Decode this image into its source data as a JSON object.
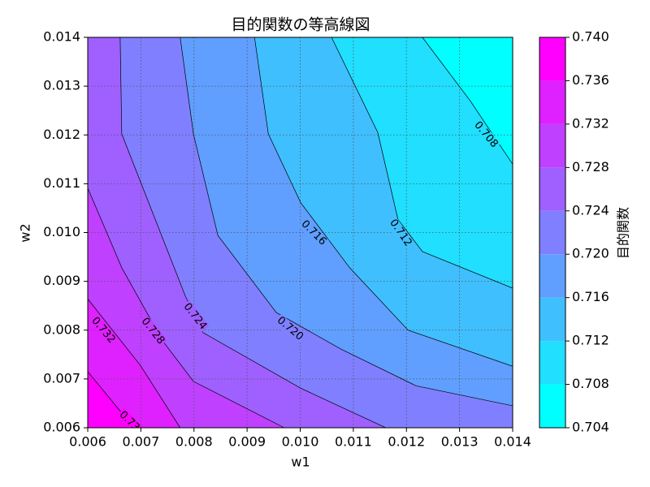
{
  "chart_data": {
    "type": "contour",
    "title": "目的関数の等高線図",
    "x_label": "w1",
    "y_label": "w2",
    "xlim": [
      0.006,
      0.014
    ],
    "ylim": [
      0.006,
      0.014
    ],
    "xticks": [
      0.006,
      0.007,
      0.008,
      0.009,
      {
        "value": 0.01,
        "label": "0.010"
      },
      0.011,
      0.012,
      0.013,
      0.014
    ],
    "yticks": [
      0.006,
      0.007,
      0.008,
      0.009,
      {
        "value": 0.01,
        "label": "0.010"
      },
      0.011,
      0.012,
      0.013,
      0.014
    ],
    "grid": true,
    "colorbar_label": "目的関数",
    "levels": [
      0.704,
      0.708,
      0.712,
      0.716,
      {
        "value": 0.72,
        "label": "0.720"
      },
      0.724,
      0.728,
      0.732,
      0.736,
      {
        "value": 0.74,
        "label": "0.740"
      }
    ],
    "band_colors": [
      "#00ffff",
      "#20dfff",
      "#40bfff",
      "#609fff",
      "#807fff",
      "#9f60ff",
      "#bf40ff",
      "#df20ff",
      "#ff00ff"
    ],
    "line_color": "#000000",
    "contours": [
      {
        "level": 0.708,
        "x": [
          0.0123,
          0.0132,
          0.014
        ],
        "y": [
          0.014,
          0.0127,
          0.0114
        ]
      },
      {
        "level": 0.712,
        "x": [
          0.01059,
          0.01146,
          0.01184,
          0.0123,
          0.014
        ],
        "y": [
          0.014,
          0.01205,
          0.01027,
          0.00961,
          0.00886
        ]
      },
      {
        "level": 0.716,
        "x": [
          0.00914,
          0.0094,
          0.01001,
          0.01093,
          0.01203,
          0.014
        ],
        "y": [
          0.014,
          0.01202,
          0.01061,
          0.00928,
          0.008,
          0.00726
        ]
      },
      {
        "level": 0.72,
        "level_label": "0.720",
        "x": [
          0.00774,
          0.00799,
          0.00845,
          0.00955,
          0.01077,
          0.01218,
          0.014
        ],
        "y": [
          0.014,
          0.01202,
          0.00994,
          0.00836,
          0.00761,
          0.00686,
          0.00645
        ]
      },
      {
        "level": 0.724,
        "x": [
          0.00661,
          0.00664,
          0.00784,
          0.00817,
          0.01001,
          0.01161
        ],
        "y": [
          0.014,
          0.01202,
          0.00869,
          0.00795,
          0.00681,
          0.006
        ]
      },
      {
        "level": 0.728,
        "x": [
          0.006,
          0.00664,
          0.00741,
          0.00799,
          0.0097
        ],
        "y": [
          0.01091,
          0.00928,
          0.00778,
          0.00695,
          0.006
        ]
      },
      {
        "level": 0.732,
        "x": [
          0.006,
          0.00699,
          0.00774
        ],
        "y": [
          0.00864,
          0.00728,
          0.006
        ]
      },
      {
        "level": 0.736,
        "x": [
          0.006,
          0.00687
        ],
        "y": [
          0.00715,
          0.006
        ]
      }
    ]
  }
}
